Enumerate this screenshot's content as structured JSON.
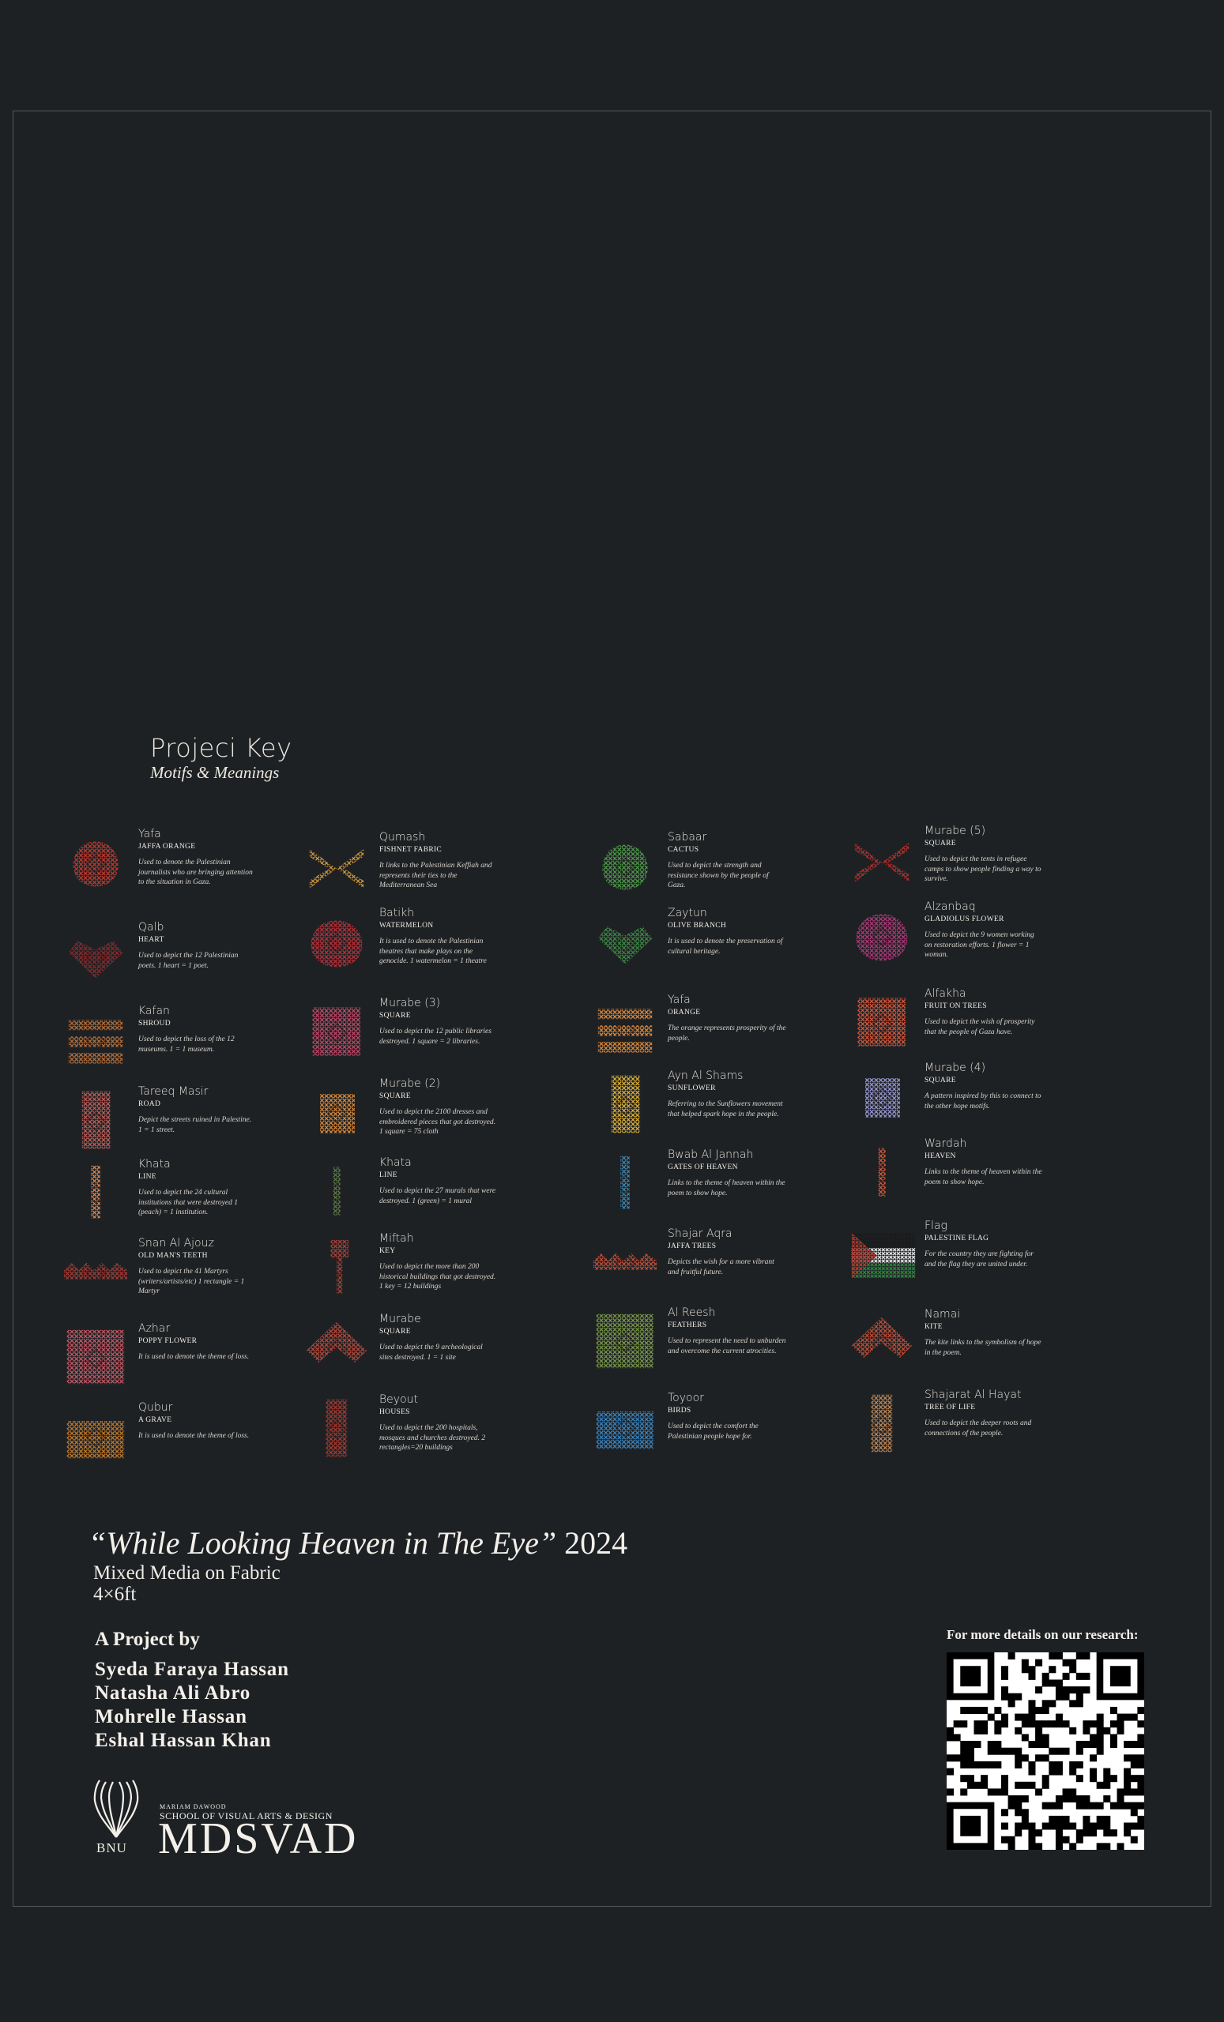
{
  "key_title": "Projeci Key",
  "key_subtitle": "Motifs & Meanings",
  "motifs": [
    {
      "name": "Yafa",
      "english": "JAFFA ORANGE",
      "desc": "Used to denote the Palestinian journalists who are bringing attention to the situation in Gaza.",
      "icon": "jaffa-orange-icon",
      "color": "#c23a2f"
    },
    {
      "name": "Qalb",
      "english": "HEART",
      "desc": "Used to depict the 12 Palestinian poets. 1 heart = 1 poet.",
      "icon": "heart-icon",
      "color": "#8e2a2c"
    },
    {
      "name": "Kafan",
      "english": "SHROUD",
      "desc": "Used to depict the loss of the 12 museums. 1 = 1 museum.",
      "icon": "shroud-icon",
      "color": "#b5703d"
    },
    {
      "name": "Tareeq Masir",
      "english": "ROAD",
      "desc": "Depict the streets ruined in Palestine. 1 = 1 street.",
      "icon": "road-icon",
      "color": "#c0605a"
    },
    {
      "name": "Khata",
      "english": "LINE",
      "desc": "Used to depict the 24 cultural institutions that were destroyed 1 (peach) = 1 institution.",
      "icon": "line-icon",
      "color": "#d98a5a"
    },
    {
      "name": "Snan Al Ajouz",
      "english": "OLD MAN'S TEETH",
      "desc": "Used to depict the 41 Martyrs (writers/artists/etc) 1 rectangle = 1 Martyr",
      "icon": "teeth-icon",
      "color": "#a53a34"
    },
    {
      "name": "Azhar",
      "english": "POPPY FLOWER",
      "desc": "It is used to denote the theme of loss.",
      "icon": "poppy-icon",
      "color": "#c45a66"
    },
    {
      "name": "Qubur",
      "english": "A GRAVE",
      "desc": "It is used to denote the theme of loss.",
      "icon": "grave-icon",
      "color": "#c07a2e"
    },
    {
      "name": "Qumash",
      "english": "FISHNET FABRIC",
      "desc": "It links to the Palestinian Keffiah and represents their ties to the Mediterranean Sea",
      "icon": "fishnet-icon",
      "color": "#d49a3c"
    },
    {
      "name": "Batikh",
      "english": "WATERMELON",
      "desc": "It is used to denote the Palestinian theatres that make plays on the genocide. 1 watermelon = 1 theatre",
      "icon": "watermelon-icon",
      "color": "#b9323a"
    },
    {
      "name": "Murabe (3)",
      "english": "SQUARE",
      "desc": "Used to depict the 12 public libraries destroyed. 1 square = 2 libraries.",
      "icon": "square-3-icon",
      "color": "#c24a6a"
    },
    {
      "name": "Murabe (2)",
      "english": "SQUARE",
      "desc": "Used to depict the 2100 dresses and embroidered pieces that got destroyed. 1 square = 75 cloth",
      "icon": "square-2-icon",
      "color": "#d98a3c"
    },
    {
      "name": "Khata",
      "english": "LINE",
      "desc": "Used to depict the 27 murals that were destroyed. 1 (green) = 1 mural",
      "icon": "green-line-icon",
      "color": "#5d7a4a"
    },
    {
      "name": "Miftah",
      "english": "KEY",
      "desc": "Used to depict the more than 200 historical buildings that got destroyed. 1 key = 12 buildings",
      "icon": "key-icon",
      "color": "#a8453a"
    },
    {
      "name": "Murabe",
      "english": "SQUARE",
      "desc": "Used to depict the 9 archeological sites destroyed. 1 = 1 site",
      "icon": "square-icon",
      "color": "#b74a3c"
    },
    {
      "name": "Beyout",
      "english": "HOUSES",
      "desc": "Used to depict the 200 hospitals, mosques and churches destroyed. 2 rectangles=20 buildings",
      "icon": "houses-icon",
      "color": "#a83a30"
    },
    {
      "name": "Sabaar",
      "english": "CACTUS",
      "desc": "Used to depict the strength and resistance shown by the people of Gaza.",
      "icon": "cactus-icon",
      "color": "#4f9a4a"
    },
    {
      "name": "Zaytun",
      "english": "OLIVE BRANCH",
      "desc": "It is used to denote the preservation of cultural heritage.",
      "icon": "olive-icon",
      "color": "#3e8a45"
    },
    {
      "name": "Yafa",
      "english": "ORANGE",
      "desc": "The orange represents prosperity of the people.",
      "icon": "orange-icon",
      "color": "#e08a3a"
    },
    {
      "name": "Ayn Al Shams",
      "english": "SUNFLOWER",
      "desc": "Referring to the Sunflowers movement that helped spark hope in the people.",
      "icon": "sunflower-icon",
      "color": "#e0b33a"
    },
    {
      "name": "Bwab Al Jannah",
      "english": "GATES OF HEAVEN",
      "desc": "Links to the theme of heaven within the poem to show hope.",
      "icon": "gates-icon",
      "color": "#3d8ab3"
    },
    {
      "name": "Shajar Aqra",
      "english": "JAFFA TREES",
      "desc": "Depicts the wish for a more vibrant and fruitful future.",
      "icon": "jaffa-trees-icon",
      "color": "#c0503a"
    },
    {
      "name": "Al Reesh",
      "english": "FEATHERS",
      "desc": "Used to represent the need to unburden and overcome the current atrocities.",
      "icon": "feathers-icon",
      "color": "#7a9a4a"
    },
    {
      "name": "Toyoor",
      "english": "BIRDS",
      "desc": "Used to depict the comfort the Palestinian people hope for.",
      "icon": "birds-icon",
      "color": "#3a86c2"
    },
    {
      "name": "Murabe (5)",
      "english": "SQUARE",
      "desc": "Used to depict the tents in refugee camps to show people finding a way to survive.",
      "icon": "square-5-icon",
      "color": "#b8322f"
    },
    {
      "name": "Alzanbaq",
      "english": "GLADIOLUS FLOWER",
      "desc": "Used to depict the 9 women working on restoration efforts. 1 flower = 1 woman.",
      "icon": "gladiolus-icon",
      "color": "#b03a7a"
    },
    {
      "name": "Alfakha",
      "english": "FRUIT ON TREES",
      "desc": "Used to depict the wish of prosperity that the people of Gaza have.",
      "icon": "fruit-trees-icon",
      "color": "#d9573a"
    },
    {
      "name": "Murabe (4)",
      "english": "SQUARE",
      "desc": "A pattern inspired by this to connect to the other hope motifs.",
      "icon": "square-4-icon",
      "color": "#9a9ad4"
    },
    {
      "name": "Wardah",
      "english": "HEAVEN",
      "desc": "Links to the theme of heaven within the poem to show hope.",
      "icon": "heaven-flower-icon",
      "color": "#d65a3a"
    },
    {
      "name": "Flag",
      "english": "PALESTINE FLAG",
      "desc": "For the country they are fighting for and the flag they are united under.",
      "icon": "palestine-flag-icon",
      "color": "#c0392b"
    },
    {
      "name": "Namai",
      "english": "KITE",
      "desc": "The kite links to the symbolism of hope in the poem.",
      "icon": "kite-icon",
      "color": "#c0503a"
    },
    {
      "name": "Shajarat Al Hayat",
      "english": "TREE OF LIFE",
      "desc": "Used to depict the deeper roots and connections of the people.",
      "icon": "tree-of-life-icon",
      "color": "#c08a5a"
    }
  ],
  "artwork": {
    "title_quoted": "“While Looking Heaven in The Eye”",
    "year": "2024",
    "medium": "Mixed Media on Fabric",
    "size": "4×6ft"
  },
  "credits": {
    "heading": "A Project by",
    "members": [
      "Syeda Faraya Hassan",
      "Natasha Ali Abro",
      "Mohrelle Hassan",
      "Eshal Hassan Khan"
    ]
  },
  "logo": {
    "university": "BNU",
    "school_top": "MARIAM DAWOOD",
    "school_line": "SCHOOL OF VISUAL ARTS & DESIGN",
    "abbr": "MDSVAD"
  },
  "research": {
    "label": "For more details on our research:"
  }
}
